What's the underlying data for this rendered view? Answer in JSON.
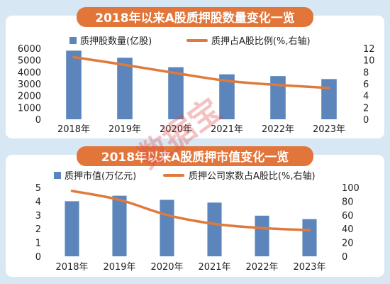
{
  "colors": {
    "background": "#d7e7f3",
    "panel": "#ffffff",
    "title_banner": "#e2753a",
    "bar": "#5b85bb",
    "line": "#e07a3c",
    "watermark": "#e04545"
  },
  "watermark": "数据宝",
  "chart_data": [
    {
      "type": "bar",
      "title": "2018年以来A股质押股数量变化一览",
      "categories": [
        "2018年",
        "2019年",
        "2020年",
        "2021年",
        "2022年",
        "2023年"
      ],
      "series": [
        {
          "name": "质押股数量(亿股)",
          "type": "bar",
          "axis": "left",
          "color": "#5b85bb",
          "values": [
            5800,
            5200,
            4400,
            3800,
            3650,
            3400
          ]
        },
        {
          "name": "质押占A股比例(%,右轴)",
          "type": "line",
          "axis": "right",
          "color": "#e07a3c",
          "values": [
            10.5,
            9.2,
            7.8,
            6.5,
            5.8,
            5.3
          ]
        }
      ],
      "ylim_left": [
        0,
        6000
      ],
      "yticks_left": [
        "0",
        "1000",
        "2000",
        "3000",
        "4000",
        "5000",
        "6000"
      ],
      "ylim_right": [
        0,
        12
      ],
      "yticks_right": [
        "0",
        "2",
        "4",
        "6",
        "8",
        "10",
        "12"
      ],
      "legend_position": "top",
      "grid": false
    },
    {
      "type": "bar",
      "title": "2018年以来A股质押市值变化一览",
      "categories": [
        "2018年",
        "2019年",
        "2020年",
        "2021年",
        "2022年",
        "2023年"
      ],
      "series": [
        {
          "name": "质押市值(万亿元)",
          "type": "bar",
          "axis": "left",
          "color": "#5b85bb",
          "values": [
            4.0,
            4.4,
            4.1,
            3.9,
            2.95,
            2.7
          ]
        },
        {
          "name": "质押公司家数占A股比(%,右轴)",
          "type": "line",
          "axis": "right",
          "color": "#e07a3c",
          "values": [
            95,
            82,
            60,
            47,
            41,
            38
          ]
        }
      ],
      "ylim_left": [
        0,
        5
      ],
      "yticks_left": [
        "0",
        "1",
        "2",
        "3",
        "4",
        "5"
      ],
      "ylim_right": [
        0,
        100
      ],
      "yticks_right": [
        "0",
        "20",
        "40",
        "60",
        "80",
        "100"
      ],
      "legend_position": "top",
      "grid": false
    }
  ]
}
